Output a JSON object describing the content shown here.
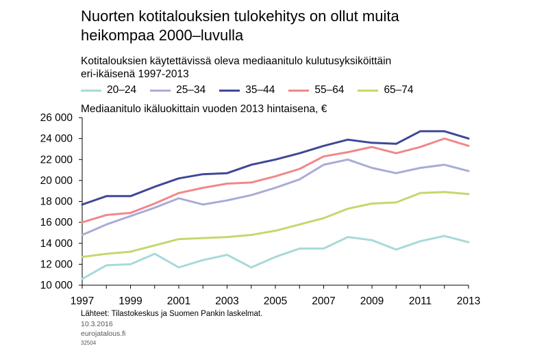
{
  "title_line1": "Nuorten kotitalouksien tulokehitys on ollut muita",
  "title_line2": "heikompaa 2000–luvulla",
  "subtitle_line1": "Kotitalouksien käytettävissä oleva mediaanitulo kulutusyksiköittäin",
  "subtitle_line2": "eri-ikäisenä 1997-2013",
  "ylabel": "Mediaanitulo ikäluokittain vuoden 2013 hintaisena, €",
  "source": "Lähteet: Tilastokeskus ja Suomen Pankin laskelmat.",
  "date": "10.3.2016",
  "site": "eurojatalous.fi",
  "code": "32504",
  "chart_data": {
    "type": "line",
    "x": [
      1997,
      1998,
      1999,
      2000,
      2001,
      2002,
      2003,
      2004,
      2005,
      2006,
      2007,
      2008,
      2009,
      2010,
      2011,
      2012,
      2013
    ],
    "x_tick_labels": [
      "1997",
      "1999",
      "2001",
      "2003",
      "2005",
      "2007",
      "2009",
      "2011",
      "2013"
    ],
    "y_tick_labels": [
      "10 000",
      "12 000",
      "14 000",
      "16 000",
      "18 000",
      "20 000",
      "22 000",
      "24 000",
      "26 000"
    ],
    "ylim": [
      10000,
      26000
    ],
    "grid": false,
    "legend_position": "top",
    "series": [
      {
        "name": "20–24",
        "color": "#a6dad9",
        "values": [
          10600,
          11900,
          12000,
          13000,
          11700,
          12400,
          12900,
          11700,
          12700,
          13500,
          13500,
          14600,
          14300,
          13400,
          14200,
          14700,
          14100
        ]
      },
      {
        "name": "25–34",
        "color": "#a9abd6",
        "values": [
          14800,
          15800,
          16600,
          17400,
          18300,
          17700,
          18100,
          18600,
          19300,
          20100,
          21500,
          22000,
          21200,
          20700,
          21200,
          21500,
          20900
        ]
      },
      {
        "name": "35–44",
        "color": "#3e4796",
        "values": [
          17700,
          18500,
          18500,
          19400,
          20200,
          20600,
          20700,
          21500,
          22000,
          22600,
          23300,
          23900,
          23600,
          23500,
          24700,
          24700,
          24000
        ]
      },
      {
        "name": "55–64",
        "color": "#f0878a",
        "values": [
          16000,
          16700,
          16900,
          17800,
          18800,
          19300,
          19700,
          19800,
          20400,
          21100,
          22300,
          22700,
          23200,
          22600,
          23200,
          24000,
          23300
        ]
      },
      {
        "name": "65–74",
        "color": "#c3d86c",
        "values": [
          12700,
          13000,
          13200,
          13800,
          14400,
          14500,
          14600,
          14800,
          15200,
          15800,
          16400,
          17300,
          17800,
          17900,
          18800,
          18900,
          18700
        ]
      }
    ]
  }
}
